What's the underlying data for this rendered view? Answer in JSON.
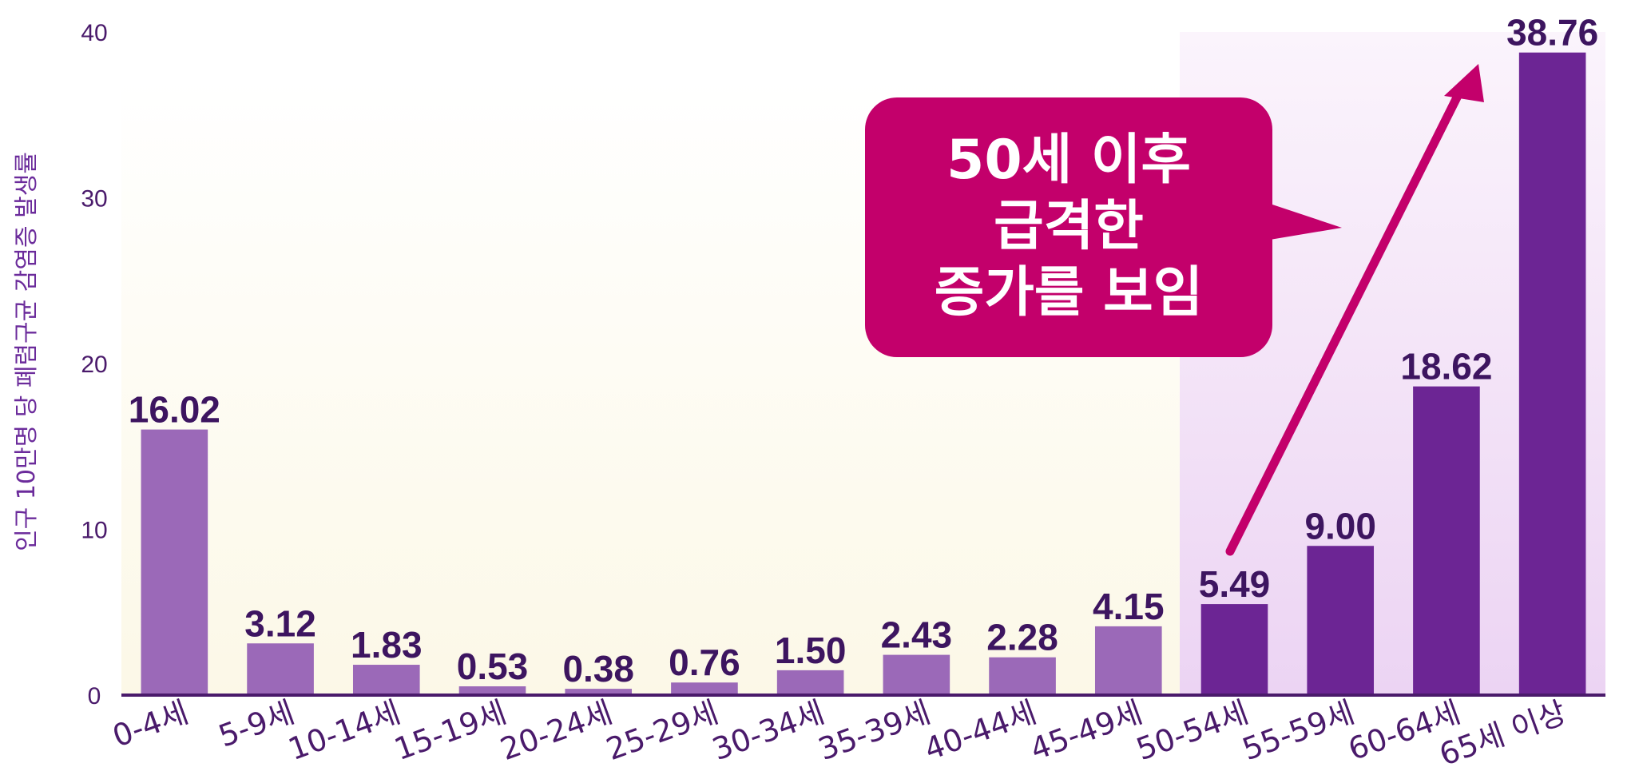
{
  "chart_data": {
    "type": "bar",
    "title": "",
    "xlabel": "",
    "ylabel": "인구 10만명 당 폐렴구균 감염증 발생률",
    "ylim": [
      0,
      40
    ],
    "yticks": [
      "0",
      "10",
      "20",
      "30",
      "40"
    ],
    "categories": [
      "0-4세",
      "5-9세",
      "10-14세",
      "15-19세",
      "20-24세",
      "25-29세",
      "30-34세",
      "35-39세",
      "40-44세",
      "45-49세",
      "50-54세",
      "55-59세",
      "60-64세",
      "65세 이상"
    ],
    "values": [
      16.02,
      3.12,
      1.83,
      0.53,
      0.38,
      0.76,
      1.5,
      2.43,
      2.28,
      4.15,
      5.49,
      9.0,
      18.62,
      38.76
    ],
    "value_labels": [
      "16.02",
      "3.12",
      "1.83",
      "0.53",
      "0.38",
      "0.76",
      "1.50",
      "2.43",
      "2.28",
      "4.15",
      "5.49",
      "9.00",
      "18.62",
      "38.76"
    ],
    "highlight_from_category": "50-54세",
    "grid": false,
    "colors": {
      "bar": "#9b69b8",
      "bar_highlight": "#6c2594",
      "value_label": "#3d1560",
      "axis": "#4a1a6b",
      "tick_label": "#4a1a6b",
      "background": "#fdfaee",
      "background_highlight": "#f0dcf5"
    },
    "annotation": {
      "text": "50세 이후\n급격한\n증가를 보임",
      "color": "#c3006b",
      "text_color": "#ffffff"
    }
  }
}
